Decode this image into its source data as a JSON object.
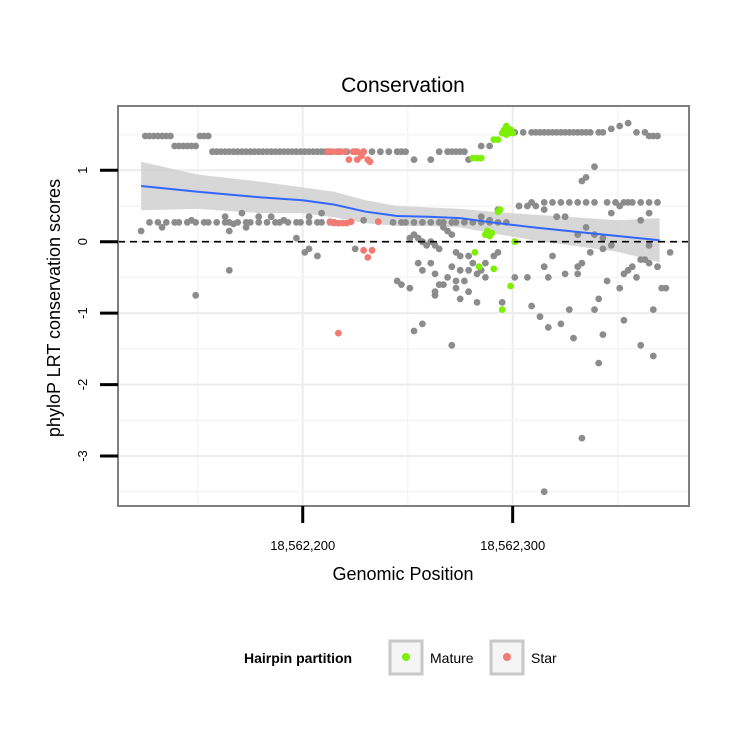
{
  "chart_data": {
    "type": "scatter",
    "title": "Conservation",
    "xlabel": "Genomic Position",
    "ylabel": "phyloP LRT conservation scores",
    "xlim": [
      18562112,
      18562384
    ],
    "ylim": [
      -3.7,
      1.9
    ],
    "x_ticks": [
      18562200,
      18562300
    ],
    "x_tick_labels": [
      "18,562,200",
      "18,562,300"
    ],
    "y_ticks": [
      -3,
      -2,
      -1,
      0,
      1
    ],
    "y_tick_labels": [
      "-3",
      "-2",
      "-1",
      "0",
      "1"
    ],
    "grid": true,
    "reference_line": {
      "y": 0,
      "style": "dashed"
    },
    "legend": {
      "title": "Hairpin partition",
      "position": "bottom",
      "entries": [
        {
          "label": "Mature",
          "color": "#7cf000"
        },
        {
          "label": "Star",
          "color": "#f27a72"
        }
      ]
    },
    "colors": {
      "other": "#8c8c8c",
      "mature": "#7cf000",
      "star": "#f27a72",
      "smooth": "#3366ff",
      "band": "#d0d0d0"
    },
    "smooth": {
      "x": [
        18562123,
        18562150,
        18562180,
        18562200,
        18562215,
        18562230,
        18562245,
        18562260,
        18562275,
        18562290,
        18562310,
        18562330,
        18562350,
        18562370
      ],
      "y": [
        0.78,
        0.7,
        0.62,
        0.58,
        0.52,
        0.42,
        0.36,
        0.35,
        0.33,
        0.27,
        0.2,
        0.14,
        0.08,
        0.02
      ],
      "upper": [
        1.12,
        0.94,
        0.84,
        0.76,
        0.7,
        0.58,
        0.5,
        0.48,
        0.46,
        0.42,
        0.38,
        0.34,
        0.3,
        0.33
      ],
      "lower": [
        0.44,
        0.46,
        0.4,
        0.4,
        0.34,
        0.26,
        0.22,
        0.22,
        0.2,
        0.12,
        0.02,
        -0.06,
        -0.14,
        -0.29
      ]
    },
    "series": [
      {
        "group": "other",
        "x": [
          18562125,
          18562127,
          18562129,
          18562131,
          18562133,
          18562135,
          18562137,
          18562139,
          18562141,
          18562143,
          18562145,
          18562147,
          18562149,
          18562151,
          18562153,
          18562155,
          18562157,
          18562159,
          18562161,
          18562163,
          18562165,
          18562167,
          18562169,
          18562171,
          18562173,
          18562175,
          18562177,
          18562179,
          18562181,
          18562183,
          18562185,
          18562187,
          18562189,
          18562191,
          18562193,
          18562195,
          18562197,
          18562199,
          18562201,
          18562203,
          18562205,
          18562207,
          18562209,
          18562211,
          18562213,
          18562217,
          18562221,
          18562225,
          18562229,
          18562233,
          18562237,
          18562241,
          18562245,
          18562247,
          18562249,
          18562253,
          18562261,
          18562265,
          18562269,
          18562271,
          18562273,
          18562275,
          18562277,
          18562279,
          18562285,
          18562289,
          18562301,
          18562305,
          18562309,
          18562311,
          18562313,
          18562315,
          18562317,
          18562319,
          18562321,
          18562323,
          18562325,
          18562327,
          18562329,
          18562331,
          18562333,
          18562335,
          18562337,
          18562341,
          18562343,
          18562347,
          18562351,
          18562355,
          18562359,
          18562363,
          18562365,
          18562367,
          18562369,
          18562127,
          18562131,
          18562135,
          18562139,
          18562141,
          18562145,
          18562149,
          18562153,
          18562155,
          18562159,
          18562163,
          18562165,
          18562169,
          18562173,
          18562175,
          18562179,
          18562183,
          18562187,
          18562189,
          18562193,
          18562197,
          18562199,
          18562203,
          18562207,
          18562209,
          18562213,
          18562215,
          18562243,
          18562247,
          18562249,
          18562253,
          18562257,
          18562261,
          18562265,
          18562267,
          18562271,
          18562273,
          18562277,
          18562281,
          18562285,
          18562289,
          18562293,
          18562297,
          18562303,
          18562307,
          18562311,
          18562315,
          18562319,
          18562323,
          18562327,
          18562331,
          18562335,
          18562339,
          18562345,
          18562349,
          18562353,
          18562357,
          18562361,
          18562365,
          18562369,
          18562123,
          18562133,
          18562147,
          18562163,
          18562171,
          18562179,
          18562191,
          18562203,
          18562209,
          18562251,
          18562253,
          18562255,
          18562257,
          18562259,
          18562261,
          18562263,
          18562265,
          18562267,
          18562269,
          18562271,
          18562273,
          18562275,
          18562285,
          18562289,
          18562293,
          18562303,
          18562309,
          18562315,
          18562321,
          18562325,
          18562331,
          18562335,
          18562339,
          18562343,
          18562347,
          18562351,
          18562355,
          18562361,
          18562365,
          18562165,
          18562167,
          18562173,
          18562185,
          18562197,
          18562255,
          18562257,
          18562261,
          18562263,
          18562269,
          18562271,
          18562273,
          18562275,
          18562279,
          18562307,
          18562315,
          18562319,
          18562325,
          18562331,
          18562333,
          18562337,
          18562343,
          18562347,
          18562353,
          18562357,
          18562361,
          18562365,
          18562369,
          18562149,
          18562165,
          18562201,
          18562245,
          18562251,
          18562253,
          18562257,
          18562279,
          18562285,
          18562317,
          18562327,
          18562331,
          18562339,
          18562345,
          18562351,
          18562359,
          18562363,
          18562365,
          18562375,
          18562267,
          18562275,
          18562283,
          18562323,
          18562341,
          18562353,
          18562361,
          18562367,
          18562371,
          18562373,
          18562355,
          18562367,
          18562333,
          18562343,
          18562339,
          18562333,
          18562335,
          18562315,
          18562295,
          18562287,
          18562283,
          18562281,
          18562277,
          18562271,
          18562265,
          18562263,
          18562225,
          18562229,
          18562203,
          18562207,
          18562247,
          18562263,
          18562273,
          18562279,
          18562287,
          18562291,
          18562293,
          18562301,
          18562309,
          18562313,
          18562317,
          18562329,
          18562341
        ],
        "y": [
          1.48,
          1.48,
          1.48,
          1.48,
          1.48,
          1.48,
          1.48,
          1.34,
          1.34,
          1.34,
          1.34,
          1.34,
          1.34,
          1.48,
          1.48,
          1.48,
          1.26,
          1.26,
          1.26,
          1.26,
          1.26,
          1.26,
          1.26,
          1.26,
          1.26,
          1.26,
          1.26,
          1.26,
          1.26,
          1.26,
          1.26,
          1.26,
          1.26,
          1.26,
          1.26,
          1.26,
          1.26,
          1.26,
          1.26,
          1.26,
          1.26,
          1.26,
          1.26,
          1.26,
          1.26,
          1.26,
          1.26,
          1.26,
          1.26,
          1.26,
          1.26,
          1.26,
          1.26,
          1.26,
          1.26,
          1.15,
          1.15,
          1.26,
          1.26,
          1.26,
          1.26,
          1.26,
          1.26,
          1.15,
          1.34,
          1.34,
          1.53,
          1.53,
          1.53,
          1.53,
          1.53,
          1.53,
          1.53,
          1.53,
          1.53,
          1.53,
          1.53,
          1.53,
          1.53,
          1.53,
          1.53,
          1.53,
          1.53,
          1.53,
          1.53,
          1.58,
          1.62,
          1.66,
          1.53,
          1.53,
          1.48,
          1.48,
          1.48,
          0.27,
          0.27,
          0.27,
          0.27,
          0.27,
          0.27,
          0.27,
          0.27,
          0.27,
          0.27,
          0.27,
          0.27,
          0.27,
          0.27,
          0.27,
          0.27,
          0.27,
          0.27,
          0.27,
          0.27,
          0.27,
          0.27,
          0.27,
          0.27,
          0.27,
          0.27,
          0.27,
          0.27,
          0.27,
          0.27,
          0.27,
          0.27,
          0.27,
          0.27,
          0.27,
          0.27,
          0.27,
          0.27,
          0.27,
          0.27,
          0.27,
          0.27,
          0.27,
          0.5,
          0.5,
          0.5,
          0.55,
          0.55,
          0.55,
          0.55,
          0.55,
          0.55,
          0.55,
          0.55,
          0.55,
          0.55,
          0.55,
          0.55,
          0.55,
          0.55,
          0.15,
          0.2,
          0.3,
          0.35,
          0.4,
          0.35,
          0.3,
          0.35,
          0.4,
          0.05,
          0.1,
          0.05,
          0.0,
          -0.05,
          0.0,
          -0.05,
          -0.1,
          0.2,
          0.15,
          0.1,
          -0.15,
          -0.2,
          0.35,
          0.3,
          0.45,
          0.5,
          0.55,
          0.45,
          0.35,
          0.35,
          0.1,
          0.2,
          0.1,
          0.05,
          0.4,
          0.5,
          0.55,
          0.3,
          0.4,
          0.15,
          0.25,
          0.2,
          0.35,
          0.05,
          -0.3,
          -0.4,
          -0.3,
          -0.45,
          -0.5,
          -0.35,
          -0.55,
          -0.4,
          -0.2,
          -0.5,
          -0.35,
          -0.2,
          -0.45,
          -0.35,
          -0.3,
          -0.15,
          -0.1,
          -0.05,
          -0.45,
          -0.35,
          -0.25,
          -0.3,
          -0.35,
          -0.75,
          -0.4,
          -0.15,
          -0.55,
          -0.65,
          -1.25,
          -1.15,
          -0.7,
          -0.4,
          -0.5,
          -0.95,
          -0.45,
          -0.95,
          -0.55,
          -0.65,
          -0.5,
          -0.25,
          -0.05,
          -0.15,
          -0.6,
          -0.8,
          -0.85,
          -1.15,
          -0.8,
          -1.1,
          -1.45,
          -0.95,
          -0.65,
          -0.65,
          -0.4,
          -1.6,
          0.85,
          -1.3,
          1.05,
          -2.75,
          0.9,
          -3.5,
          -0.85,
          -0.5,
          -0.45,
          -0.3,
          -0.55,
          -1.45,
          -0.6,
          -0.7,
          -0.1,
          0.3,
          -0.1,
          -0.2,
          -0.6,
          -0.75,
          -0.65,
          -0.4,
          -0.3,
          -0.2,
          -0.15,
          -0.5,
          -0.9,
          -1.05,
          -1.2,
          -1.35,
          -1.7
        ]
      },
      {
        "group": "mature",
        "x": [
          18562281,
          18562283,
          18562285,
          18562291,
          18562293,
          18562295,
          18562296,
          18562297,
          18562298,
          18562299,
          18562300,
          18562282,
          18562284,
          18562287,
          18562288,
          18562289,
          18562290,
          18562291,
          18562293,
          18562294,
          18562301,
          18562299,
          18562295,
          18562297
        ],
        "y": [
          1.17,
          1.17,
          1.17,
          1.43,
          1.43,
          1.52,
          1.57,
          1.62,
          1.52,
          1.57,
          1.52,
          -0.15,
          -0.35,
          0.1,
          0.15,
          0.08,
          0.12,
          -0.38,
          0.42,
          0.45,
          0.0,
          -0.62,
          -0.95,
          1.5
        ]
      },
      {
        "group": "star",
        "x": [
          18562212,
          18562214,
          18562218,
          18562220,
          18562224,
          18562226,
          18562229,
          18562231,
          18562216,
          18562218,
          18562222,
          18562226,
          18562228,
          18562232,
          18562236,
          18562213,
          18562215,
          18562217,
          18562219,
          18562221,
          18562223,
          18562229,
          18562231,
          18562233,
          18562217
        ],
        "y": [
          1.26,
          1.26,
          1.26,
          1.26,
          1.26,
          1.26,
          1.26,
          1.15,
          1.26,
          1.26,
          1.15,
          1.15,
          1.2,
          1.12,
          0.28,
          0.28,
          0.26,
          0.26,
          0.26,
          0.26,
          0.28,
          -0.12,
          -0.22,
          -0.12,
          -1.28
        ]
      }
    ]
  }
}
